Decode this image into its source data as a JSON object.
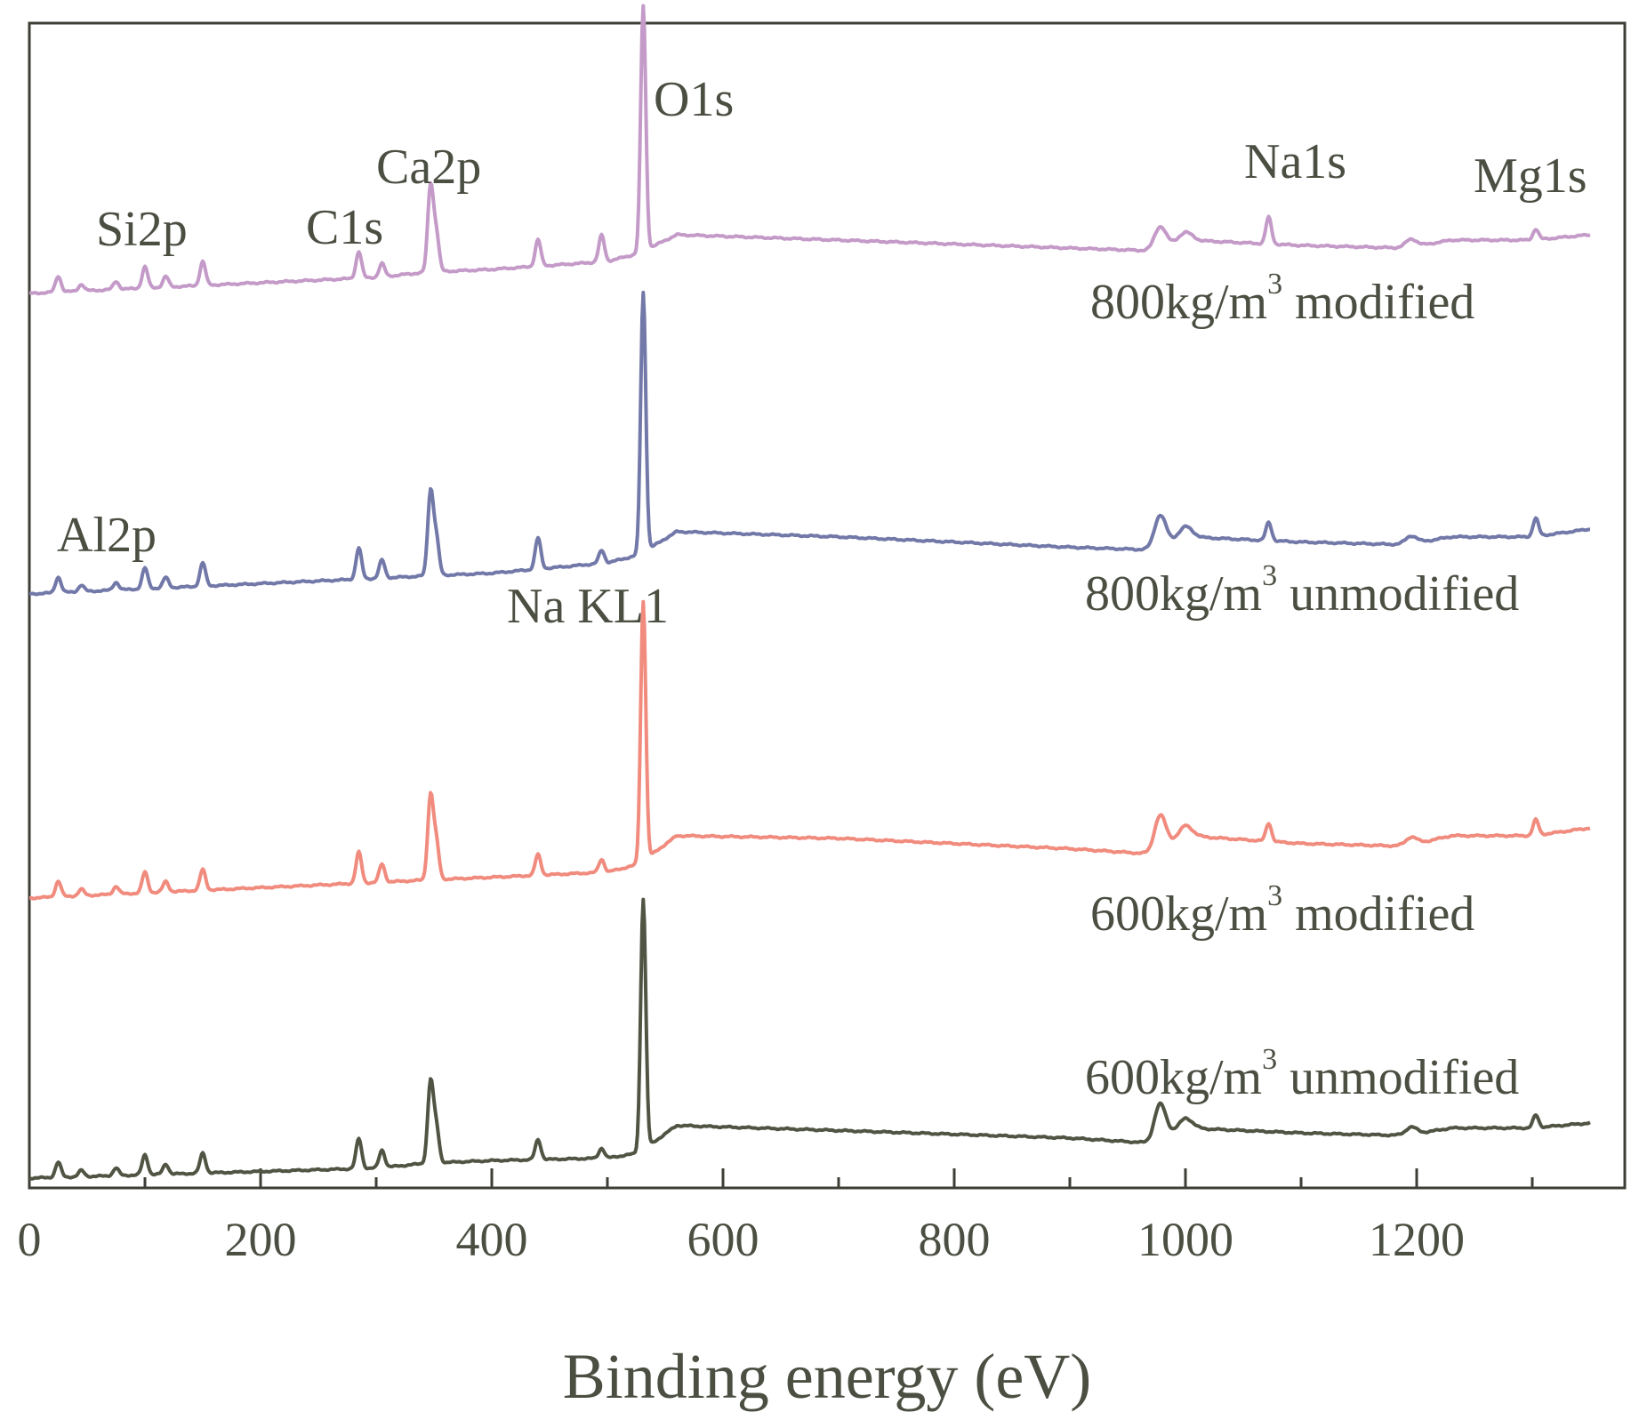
{
  "chart_data": {
    "type": "line",
    "title": "",
    "xlabel": "Binding energy (eV)",
    "ylabel": "",
    "xlim": [
      0,
      1380
    ],
    "x_ticks": [
      0,
      200,
      400,
      600,
      800,
      1000,
      1200
    ],
    "x_tick_labels": [
      "0",
      "200",
      "400",
      "600",
      "800",
      "1000",
      "1200"
    ],
    "x_minor_ticks": [
      100,
      300,
      500,
      700,
      900,
      1100,
      1300
    ],
    "y_ticks_shown": false,
    "grid": false,
    "legend": "none (inline labels)",
    "series": [
      {
        "name": "800kg/m3 modified",
        "label_main": "800kg/m",
        "label_sup": "3",
        "label_rest": " modified",
        "color": "#c49ac8",
        "baseline": [
          [
            0,
            0.0
          ],
          [
            150,
            0.03
          ],
          [
            300,
            0.06
          ],
          [
            345,
            0.08
          ],
          [
            400,
            0.09
          ],
          [
            500,
            0.12
          ],
          [
            527,
            0.15
          ],
          [
            560,
            0.22
          ],
          [
            700,
            0.2
          ],
          [
            900,
            0.17
          ],
          [
            970,
            0.16
          ],
          [
            1000,
            0.2
          ],
          [
            1100,
            0.18
          ],
          [
            1190,
            0.17
          ],
          [
            1230,
            0.2
          ],
          [
            1300,
            0.2
          ],
          [
            1350,
            0.22
          ]
        ],
        "peaks": [
          [
            25,
            0.06
          ],
          [
            45,
            0.025
          ],
          [
            75,
            0.03
          ],
          [
            100,
            0.08
          ],
          [
            118,
            0.04
          ],
          [
            150,
            0.09
          ],
          [
            285,
            0.1
          ],
          [
            305,
            0.05
          ],
          [
            347,
            0.32
          ],
          [
            352,
            0.14
          ],
          [
            440,
            0.1
          ],
          [
            495,
            0.1
          ],
          [
            531,
            0.92
          ],
          [
            978,
            0.08
          ],
          [
            1000,
            0.03
          ],
          [
            1072,
            0.1
          ],
          [
            1195,
            0.03
          ],
          [
            1303,
            0.04
          ]
        ]
      },
      {
        "name": "800kg/m3 unmodified",
        "label_main": "800kg/m",
        "label_sup": "3",
        "label_rest": " unmodified",
        "color": "#7278a8",
        "baseline": [
          [
            0,
            0.0
          ],
          [
            150,
            0.03
          ],
          [
            300,
            0.06
          ],
          [
            345,
            0.07
          ],
          [
            400,
            0.08
          ],
          [
            500,
            0.12
          ],
          [
            527,
            0.15
          ],
          [
            560,
            0.24
          ],
          [
            700,
            0.22
          ],
          [
            900,
            0.18
          ],
          [
            970,
            0.17
          ],
          [
            1000,
            0.22
          ],
          [
            1100,
            0.2
          ],
          [
            1190,
            0.19
          ],
          [
            1230,
            0.22
          ],
          [
            1300,
            0.22
          ],
          [
            1350,
            0.25
          ]
        ],
        "peaks": [
          [
            25,
            0.06
          ],
          [
            45,
            0.025
          ],
          [
            75,
            0.03
          ],
          [
            100,
            0.08
          ],
          [
            118,
            0.04
          ],
          [
            150,
            0.09
          ],
          [
            285,
            0.12
          ],
          [
            305,
            0.07
          ],
          [
            347,
            0.32
          ],
          [
            352,
            0.14
          ],
          [
            440,
            0.12
          ],
          [
            495,
            0.05
          ],
          [
            531,
            1.0
          ],
          [
            978,
            0.12
          ],
          [
            1000,
            0.04
          ],
          [
            1072,
            0.07
          ],
          [
            1195,
            0.03
          ],
          [
            1303,
            0.07
          ]
        ]
      },
      {
        "name": "600kg/m3 modified",
        "label_main": "600kg/m",
        "label_sup": "3",
        "label_rest": " modified",
        "color": "#f08b7e",
        "baseline": [
          [
            0,
            0.0
          ],
          [
            150,
            0.03
          ],
          [
            300,
            0.06
          ],
          [
            345,
            0.07
          ],
          [
            400,
            0.08
          ],
          [
            500,
            0.1
          ],
          [
            527,
            0.13
          ],
          [
            560,
            0.24
          ],
          [
            700,
            0.23
          ],
          [
            900,
            0.19
          ],
          [
            970,
            0.17
          ],
          [
            1000,
            0.24
          ],
          [
            1100,
            0.21
          ],
          [
            1190,
            0.2
          ],
          [
            1230,
            0.24
          ],
          [
            1300,
            0.24
          ],
          [
            1350,
            0.27
          ]
        ],
        "peaks": [
          [
            25,
            0.06
          ],
          [
            45,
            0.025
          ],
          [
            75,
            0.03
          ],
          [
            100,
            0.08
          ],
          [
            118,
            0.04
          ],
          [
            150,
            0.08
          ],
          [
            285,
            0.12
          ],
          [
            305,
            0.07
          ],
          [
            347,
            0.32
          ],
          [
            352,
            0.14
          ],
          [
            440,
            0.08
          ],
          [
            495,
            0.05
          ],
          [
            531,
            1.0
          ],
          [
            978,
            0.13
          ],
          [
            1000,
            0.04
          ],
          [
            1072,
            0.07
          ],
          [
            1195,
            0.03
          ],
          [
            1303,
            0.06
          ]
        ]
      },
      {
        "name": "600kg/m3 unmodified",
        "label_main": "600kg/m",
        "label_sup": "3",
        "label_rest": " unmodified",
        "color": "#4f5443",
        "baseline": [
          [
            0,
            0.0
          ],
          [
            150,
            0.02
          ],
          [
            300,
            0.04
          ],
          [
            345,
            0.06
          ],
          [
            400,
            0.07
          ],
          [
            500,
            0.08
          ],
          [
            527,
            0.1
          ],
          [
            560,
            0.21
          ],
          [
            700,
            0.19
          ],
          [
            900,
            0.16
          ],
          [
            970,
            0.14
          ],
          [
            1000,
            0.2
          ],
          [
            1100,
            0.18
          ],
          [
            1190,
            0.17
          ],
          [
            1230,
            0.2
          ],
          [
            1300,
            0.2
          ],
          [
            1350,
            0.22
          ]
        ],
        "peaks": [
          [
            25,
            0.06
          ],
          [
            45,
            0.025
          ],
          [
            75,
            0.03
          ],
          [
            100,
            0.08
          ],
          [
            118,
            0.04
          ],
          [
            150,
            0.08
          ],
          [
            285,
            0.12
          ],
          [
            305,
            0.07
          ],
          [
            347,
            0.32
          ],
          [
            352,
            0.14
          ],
          [
            440,
            0.08
          ],
          [
            495,
            0.04
          ],
          [
            531,
            1.0
          ],
          [
            978,
            0.14
          ],
          [
            1000,
            0.04
          ],
          [
            1195,
            0.03
          ],
          [
            1303,
            0.05
          ]
        ]
      }
    ],
    "annotations": [
      {
        "text": "O1s",
        "x": 531
      },
      {
        "text": "Na1s",
        "x": 1072
      },
      {
        "text": "Mg1s",
        "x": 1303
      },
      {
        "text": "Ca2p",
        "x": 347
      },
      {
        "text": "C1s",
        "x": 285
      },
      {
        "text": "Si2p",
        "x": 100
      },
      {
        "text": "Al2p",
        "x": 75
      },
      {
        "text": "Na KL1",
        "x": 495
      }
    ]
  }
}
